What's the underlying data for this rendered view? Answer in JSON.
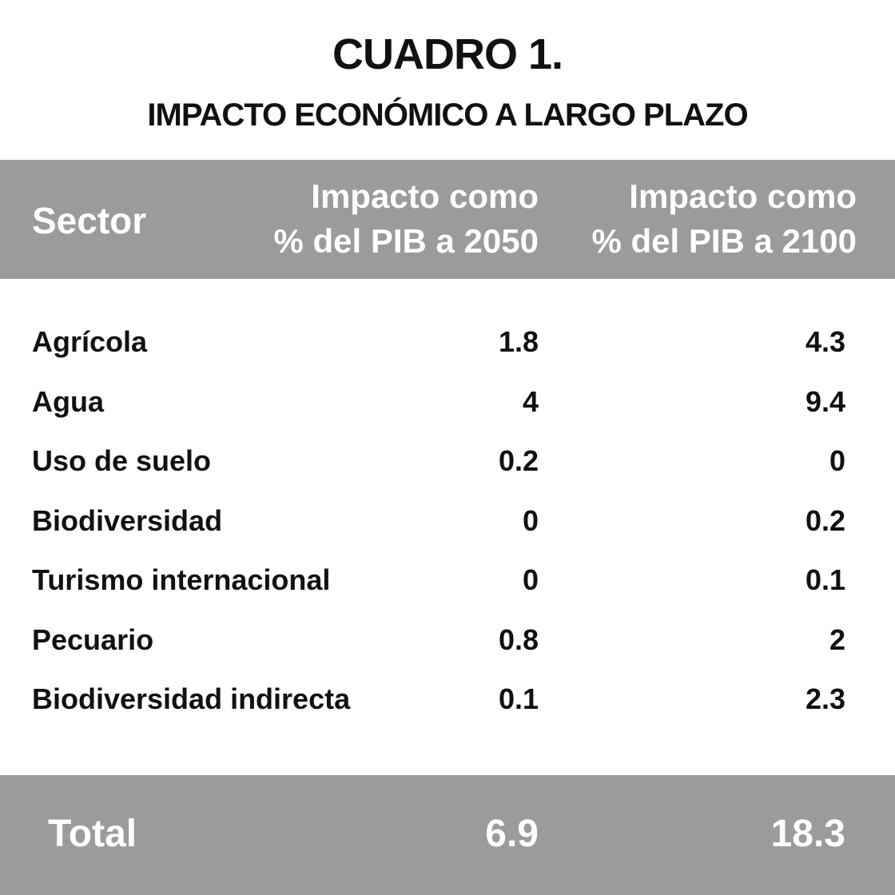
{
  "chart_data": {
    "type": "table",
    "title": "CUADRO 1.",
    "subtitle": "IMPACTO ECONÓMICO A LARGO PLAZO",
    "columns": [
      {
        "label": "Sector"
      },
      {
        "label_line1": "Impacto como",
        "label_line2": "% del PIB a 2050"
      },
      {
        "label_line1": "Impacto como",
        "label_line2": "% del PIB a 2100"
      }
    ],
    "rows": [
      {
        "sector": "Agrícola",
        "pib_2050": "1.8",
        "pib_2100": "4.3"
      },
      {
        "sector": "Agua",
        "pib_2050": "4",
        "pib_2100": "9.4"
      },
      {
        "sector": "Uso de suelo",
        "pib_2050": "0.2",
        "pib_2100": "0"
      },
      {
        "sector": "Biodiversidad",
        "pib_2050": "0",
        "pib_2100": "0.2"
      },
      {
        "sector": "Turismo internacional",
        "pib_2050": "0",
        "pib_2100": "0.1"
      },
      {
        "sector": "Pecuario",
        "pib_2050": "0.8",
        "pib_2100": "2"
      },
      {
        "sector": "Biodiversidad indirecta",
        "pib_2050": "0.1",
        "pib_2100": "2.3"
      }
    ],
    "total": {
      "label": "Total",
      "pib_2050": "6.9",
      "pib_2100": "18.3"
    },
    "colors": {
      "header_background": "#9b9b9b",
      "header_text": "#ffffff",
      "body_text": "#111111"
    }
  }
}
